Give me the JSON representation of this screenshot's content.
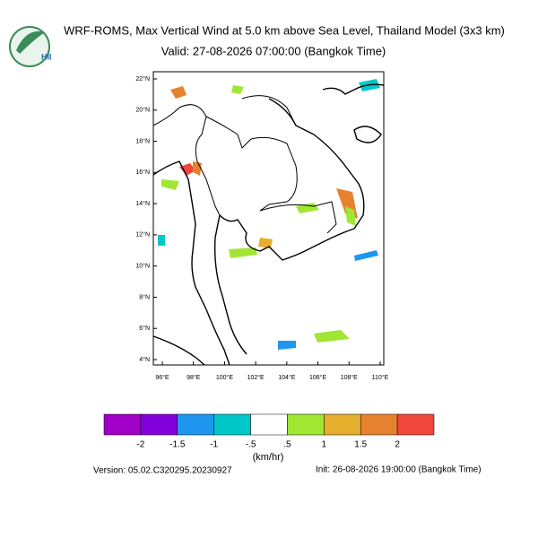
{
  "logo": {
    "text": "HII"
  },
  "header": {
    "title": "WRF-ROMS, Max Vertical Wind at 5.0 km above Sea Level, Thailand Model (3x3 km)",
    "valid": "Valid: 27-08-2026 07:00:00 (Bangkok Time)"
  },
  "map": {
    "lat_labels": [
      "4°N",
      "6°N",
      "8°N",
      "10°N",
      "12°N",
      "14°N",
      "16°N",
      "18°N",
      "20°N",
      "22°N"
    ],
    "lon_labels": [
      "96°E",
      "98°E",
      "100°E",
      "102°E",
      "104°E",
      "106°E",
      "108°E",
      "110°E"
    ]
  },
  "colorbar": {
    "colors": [
      "#a000c8",
      "#8200dc",
      "#1e96f0",
      "#00c8c8",
      "#ffffff",
      "#a0e632",
      "#e6af2d",
      "#e6822d",
      "#f0463c"
    ],
    "labels": [
      "-2",
      "-1.5",
      "-1",
      "-.5",
      ".5",
      "1",
      "1.5",
      "2"
    ],
    "unit": "(km/hr)"
  },
  "footer": {
    "version": "Version: 05.02.C320295.20230927",
    "init": "Init: 26-08-2026 19:00:00 (Bangkok Time)"
  }
}
